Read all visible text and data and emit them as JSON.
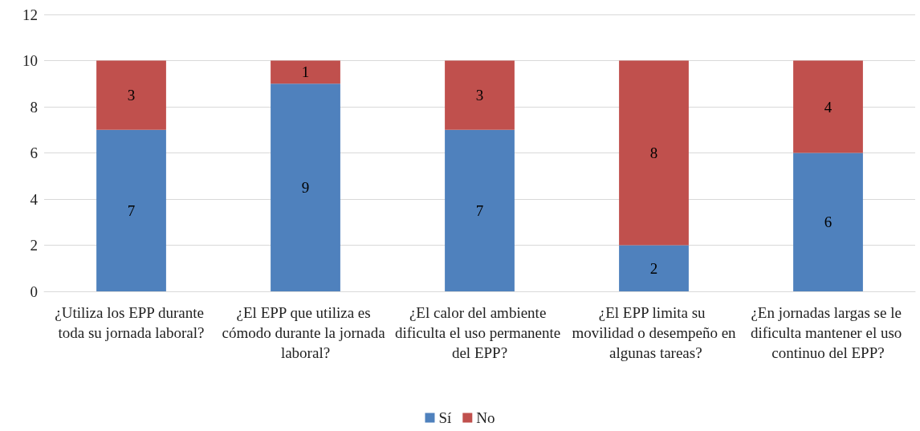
{
  "chart_data": {
    "type": "bar",
    "stacked": true,
    "categories": [
      "¿Utiliza los EPP durante toda su jornada laboral?",
      "¿El EPP que utiliza es cómodo durante la jornada laboral?",
      "¿El calor del ambiente dificulta el uso permanente del EPP?",
      "¿El EPP limita su movilidad o desempeño en algunas tareas?",
      "¿En jornadas largas se le dificulta mantener el uso continuo del EPP?"
    ],
    "series": [
      {
        "name": "Sí",
        "color": "#4f81bd",
        "values": [
          7,
          9,
          7,
          2,
          6
        ]
      },
      {
        "name": "No",
        "color": "#c0504d",
        "values": [
          3,
          1,
          3,
          8,
          4
        ]
      }
    ],
    "ylim": [
      0,
      12
    ],
    "yticks": [
      0,
      2,
      4,
      6,
      8,
      10,
      12
    ],
    "grid": "y",
    "legend": "bottom",
    "data_labels": true
  }
}
